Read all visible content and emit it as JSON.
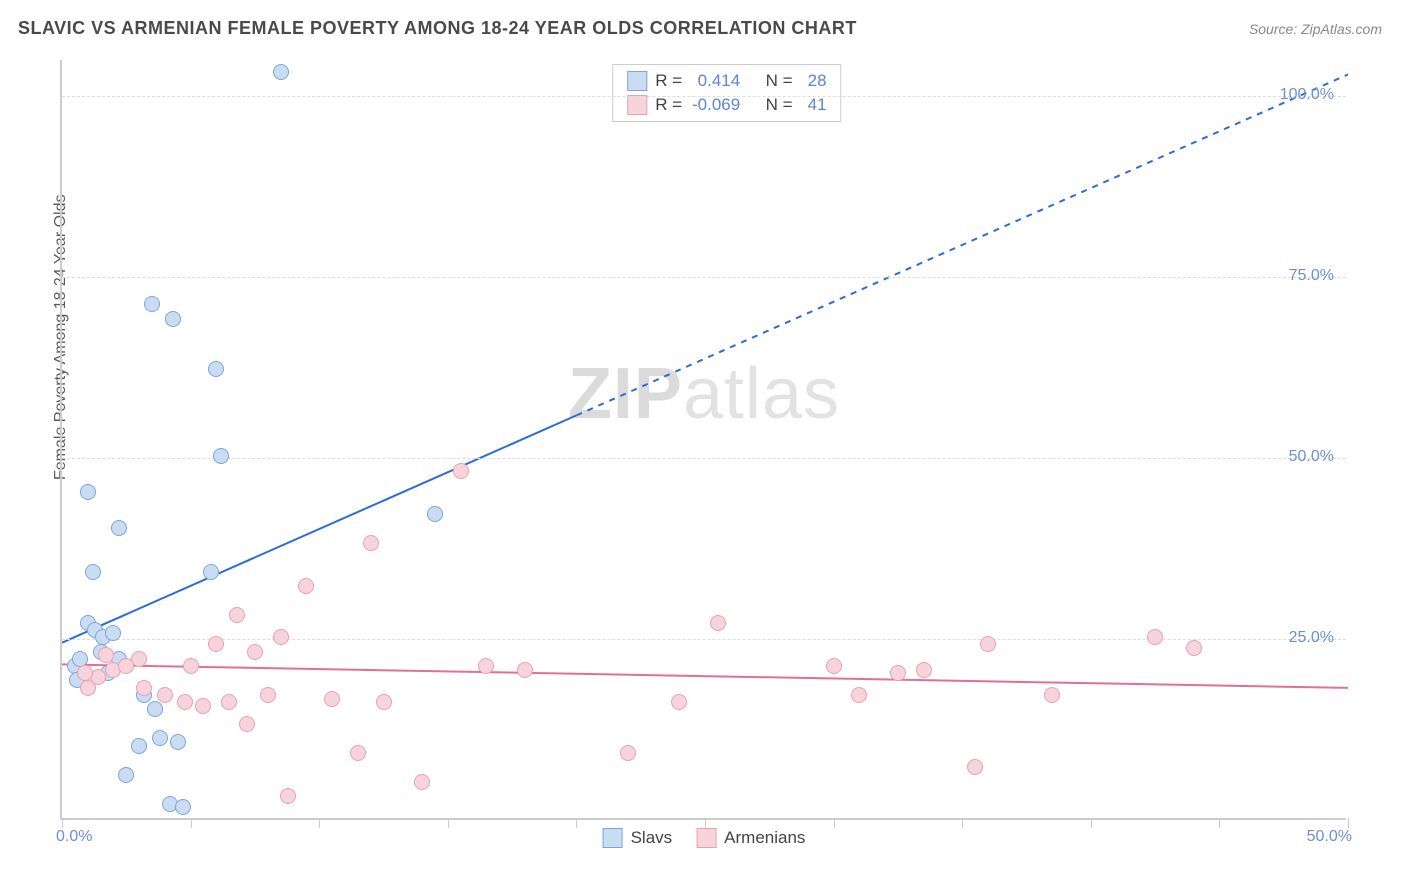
{
  "header": {
    "title": "SLAVIC VS ARMENIAN FEMALE POVERTY AMONG 18-24 YEAR OLDS CORRELATION CHART",
    "source": "Source: ZipAtlas.com"
  },
  "watermark": {
    "prefix": "ZIP",
    "suffix": "atlas"
  },
  "chart": {
    "type": "scatter",
    "background_color": "#ffffff",
    "axis_color": "#cccccc",
    "grid_color": "#dddddd",
    "right_label_color": "#6b8fd4",
    "ylabel": "Female Poverty Among 18-24 Year Olds",
    "ylabel_fontsize": 16,
    "xlim": [
      0,
      50
    ],
    "ylim": [
      0,
      105
    ],
    "y_ticks": [
      25,
      50,
      75,
      100
    ],
    "y_tick_labels": [
      "25.0%",
      "50.0%",
      "75.0%",
      "100.0%"
    ],
    "x_ticks": [
      0,
      5,
      10,
      15,
      20,
      25,
      30,
      35,
      40,
      45,
      50
    ],
    "x_min_label": "0.0%",
    "x_max_label": "50.0%",
    "marker_radius": 8,
    "series": [
      {
        "name": "Slavs",
        "fill": "#c9dcf2",
        "stroke": "#7aa6dd",
        "r_label": "R =",
        "r_value": "0.414",
        "n_label": "N =",
        "n_value": "28",
        "trend": {
          "slope": 1.57,
          "intercept": 24.5,
          "color": "#2e6bd6",
          "width": 2,
          "dash_after_x": 20
        },
        "points": [
          [
            8.5,
            103
          ],
          [
            1,
            45
          ],
          [
            2.2,
            40
          ],
          [
            3.5,
            71
          ],
          [
            4.3,
            69
          ],
          [
            6,
            62
          ],
          [
            6.2,
            50
          ],
          [
            1.2,
            34
          ],
          [
            5.8,
            34
          ],
          [
            14.5,
            42
          ],
          [
            1,
            27
          ],
          [
            1.3,
            26
          ],
          [
            1.6,
            25
          ],
          [
            2,
            25.5
          ],
          [
            0.5,
            21
          ],
          [
            0.7,
            22
          ],
          [
            1.5,
            23
          ],
          [
            2.2,
            22
          ],
          [
            1.8,
            20
          ],
          [
            0.6,
            19
          ],
          [
            3.0,
            10
          ],
          [
            3.8,
            11
          ],
          [
            4.5,
            10.5
          ],
          [
            2.5,
            6
          ],
          [
            4.2,
            2
          ],
          [
            4.7,
            1.5
          ],
          [
            3.2,
            17
          ],
          [
            3.6,
            15
          ]
        ]
      },
      {
        "name": "Armenians",
        "fill": "#f7d3db",
        "stroke": "#eaa0b1",
        "r_label": "R =",
        "r_value": "-0.069",
        "n_label": "N =",
        "n_value": "41",
        "trend": {
          "slope": -0.065,
          "intercept": 21.5,
          "color": "#e36f91",
          "width": 2,
          "dash_after_x": 60
        },
        "points": [
          [
            15.5,
            48
          ],
          [
            12,
            38
          ],
          [
            9.5,
            32
          ],
          [
            6.8,
            28
          ],
          [
            8.5,
            25
          ],
          [
            6,
            24
          ],
          [
            7.5,
            23
          ],
          [
            5,
            21
          ],
          [
            3,
            22
          ],
          [
            2,
            20.5
          ],
          [
            1.4,
            19.5
          ],
          [
            0.9,
            20
          ],
          [
            1.7,
            22.5
          ],
          [
            2.5,
            21
          ],
          [
            3.2,
            18
          ],
          [
            4.0,
            17
          ],
          [
            4.8,
            16
          ],
          [
            5.5,
            15.5
          ],
          [
            6.5,
            16
          ],
          [
            8.0,
            17
          ],
          [
            10.5,
            16.5
          ],
          [
            12.5,
            16
          ],
          [
            16.5,
            21
          ],
          [
            18.0,
            20.5
          ],
          [
            14.0,
            5
          ],
          [
            11.5,
            9
          ],
          [
            7.2,
            13
          ],
          [
            8.8,
            3
          ],
          [
            25.5,
            27
          ],
          [
            30.0,
            21
          ],
          [
            32.5,
            20
          ],
          [
            33.5,
            20.5
          ],
          [
            31.0,
            17
          ],
          [
            24.0,
            16
          ],
          [
            22.0,
            9
          ],
          [
            36.0,
            24
          ],
          [
            38.5,
            17
          ],
          [
            42.5,
            25
          ],
          [
            35.5,
            7
          ],
          [
            44.0,
            23.5
          ],
          [
            1.0,
            18
          ]
        ]
      }
    ]
  },
  "footer_legend": {
    "items": [
      {
        "label": "Slavs",
        "fill": "#c9dcf2",
        "stroke": "#7aa6dd"
      },
      {
        "label": "Armenians",
        "fill": "#f7d3db",
        "stroke": "#eaa0b1"
      }
    ]
  }
}
